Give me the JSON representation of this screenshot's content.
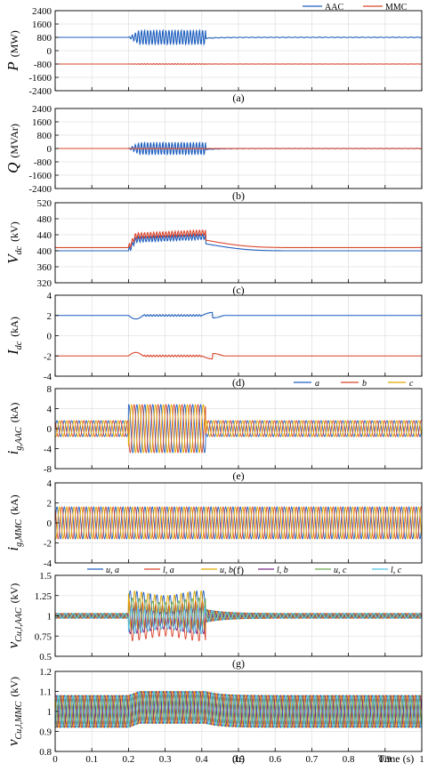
{
  "colors": {
    "blue": "#1f5fbf",
    "red": "#d9452b",
    "yellow": "#e0a800",
    "purple": "#7b2a8c",
    "green": "#6aa84f",
    "cyan": "#4ec3e8"
  },
  "xlabel": "Time (s)",
  "xticks": [
    "0",
    "0.1",
    "0.2",
    "0.3",
    "0.4",
    "0.5",
    "0.6",
    "0.7",
    "0.8",
    "0.9",
    "1"
  ],
  "chart_data": [
    {
      "type": "line",
      "panel_label": "(a)",
      "ylabel": {
        "sym": "P",
        "sub": "",
        "unit": "(MW)"
      },
      "ylim": [
        -2400,
        2400
      ],
      "yticks": [
        "2400",
        "1600",
        "800",
        "0",
        "-800",
        "-1600",
        "-2400"
      ],
      "xlim": [
        0,
        1
      ],
      "grid": true,
      "legend": {
        "placement": "top-right",
        "entries": [
          "AAC",
          "MMC"
        ]
      },
      "series": [
        {
          "name": "AAC",
          "color_key": "blue",
          "baseline": 800,
          "disturb_amp": 450,
          "post_amp": 15
        },
        {
          "name": "MMC",
          "color_key": "red",
          "baseline": -800,
          "disturb_amp": 20,
          "post_amp": 5
        }
      ]
    },
    {
      "type": "line",
      "panel_label": "(b)",
      "ylabel": {
        "sym": "Q",
        "sub": "",
        "unit": "(MVAr)"
      },
      "ylim": [
        -2400,
        2400
      ],
      "yticks": [
        "2400",
        "1600",
        "800",
        "0",
        "-800",
        "-1600",
        "-2400"
      ],
      "xlim": [
        0,
        1
      ],
      "grid": true,
      "series": [
        {
          "name": "AAC",
          "color_key": "blue",
          "baseline": 0,
          "disturb_amp": 380,
          "post_amp": 10
        },
        {
          "name": "MMC",
          "color_key": "red",
          "baseline": 0,
          "disturb_amp": 15,
          "post_amp": 3
        }
      ]
    },
    {
      "type": "line",
      "panel_label": "(c)",
      "ylabel": {
        "sym": "V",
        "sub": "dc",
        "unit": "(kV)"
      },
      "ylim": [
        320,
        520
      ],
      "yticks": [
        "520",
        "480",
        "440",
        "400",
        "360",
        "320"
      ],
      "xlim": [
        0,
        1
      ],
      "grid": true,
      "series": [
        {
          "name": "AAC",
          "color_key": "blue",
          "baseline": 400,
          "disturb_peak": 432
        },
        {
          "name": "MMC",
          "color_key": "red",
          "baseline": 408,
          "disturb_peak": 442
        }
      ]
    },
    {
      "type": "line",
      "panel_label": "(d)",
      "ylabel": {
        "sym": "I",
        "sub": "dc",
        "unit": "(kA)"
      },
      "ylim": [
        -4,
        4
      ],
      "yticks": [
        "4",
        "2",
        "0",
        "-2",
        "-4"
      ],
      "xlim": [
        0,
        1
      ],
      "grid": true,
      "series": [
        {
          "name": "AAC",
          "color_key": "blue",
          "baseline": 2
        },
        {
          "name": "MMC",
          "color_key": "red",
          "baseline": -2
        }
      ]
    },
    {
      "type": "line",
      "panel_label": "(e)",
      "ylabel": {
        "sym": "i",
        "sub": "g,AAC",
        "unit": "(kA)"
      },
      "ylim": [
        -8,
        8
      ],
      "yticks": [
        "8",
        "4",
        "0",
        "-4",
        "-8"
      ],
      "xlim": [
        0,
        1
      ],
      "grid": true,
      "legend": {
        "placement": "top-right",
        "entries": [
          "a",
          "b",
          "c"
        ]
      },
      "series": [
        {
          "name": "a",
          "color_key": "blue",
          "amp": 1.6,
          "disturb_amp": 4.8
        },
        {
          "name": "b",
          "color_key": "red",
          "amp": 1.6,
          "disturb_amp": 4.8
        },
        {
          "name": "c",
          "color_key": "yellow",
          "amp": 1.6,
          "disturb_amp": 4.8
        }
      ]
    },
    {
      "type": "line",
      "panel_label": "(f)",
      "ylabel": {
        "sym": "i",
        "sub": "g,MMC",
        "unit": "(kA)"
      },
      "ylim": [
        -4,
        4
      ],
      "yticks": [
        "4",
        "2",
        "0",
        "-2",
        "-4"
      ],
      "xlim": [
        0,
        1
      ],
      "grid": true,
      "series": [
        {
          "name": "a",
          "color_key": "blue",
          "amp": 1.6
        },
        {
          "name": "b",
          "color_key": "red",
          "amp": 1.6
        },
        {
          "name": "c",
          "color_key": "yellow",
          "amp": 1.6
        }
      ]
    },
    {
      "type": "line",
      "panel_label": "(g)",
      "ylabel": {
        "sym": "v",
        "sub": "Cu,l,AAC",
        "unit": "(kV)"
      },
      "ylim": [
        0.5,
        1.5
      ],
      "yticks": [
        "1.5",
        "1.25",
        "1",
        "0.75",
        "0.5"
      ],
      "xlim": [
        0,
        1
      ],
      "grid": true,
      "legend": {
        "placement": "top",
        "entries": [
          "u, a",
          "l, a",
          "u, b",
          "l, b",
          "u, c",
          "l, c"
        ]
      },
      "series": [
        {
          "name": "u, a",
          "color_key": "blue"
        },
        {
          "name": "l, a",
          "color_key": "red"
        },
        {
          "name": "u, b",
          "color_key": "yellow"
        },
        {
          "name": "l, b",
          "color_key": "purple"
        },
        {
          "name": "u, c",
          "color_key": "green"
        },
        {
          "name": "l, c",
          "color_key": "cyan"
        }
      ]
    },
    {
      "type": "line",
      "panel_label": "(h)",
      "ylabel": {
        "sym": "v",
        "sub": "Cu,l,MMC",
        "unit": "(kV)"
      },
      "ylim": [
        0.8,
        1.2
      ],
      "yticks": [
        "1.2",
        "1.1",
        "1",
        "0.9",
        "0.8"
      ],
      "xlim": [
        0,
        1
      ],
      "grid": true,
      "series": [
        {
          "name": "u, a",
          "color_key": "blue"
        },
        {
          "name": "l, a",
          "color_key": "red"
        },
        {
          "name": "u, b",
          "color_key": "yellow"
        },
        {
          "name": "l, b",
          "color_key": "purple"
        },
        {
          "name": "u, c",
          "color_key": "green"
        },
        {
          "name": "l, c",
          "color_key": "cyan"
        }
      ]
    }
  ]
}
